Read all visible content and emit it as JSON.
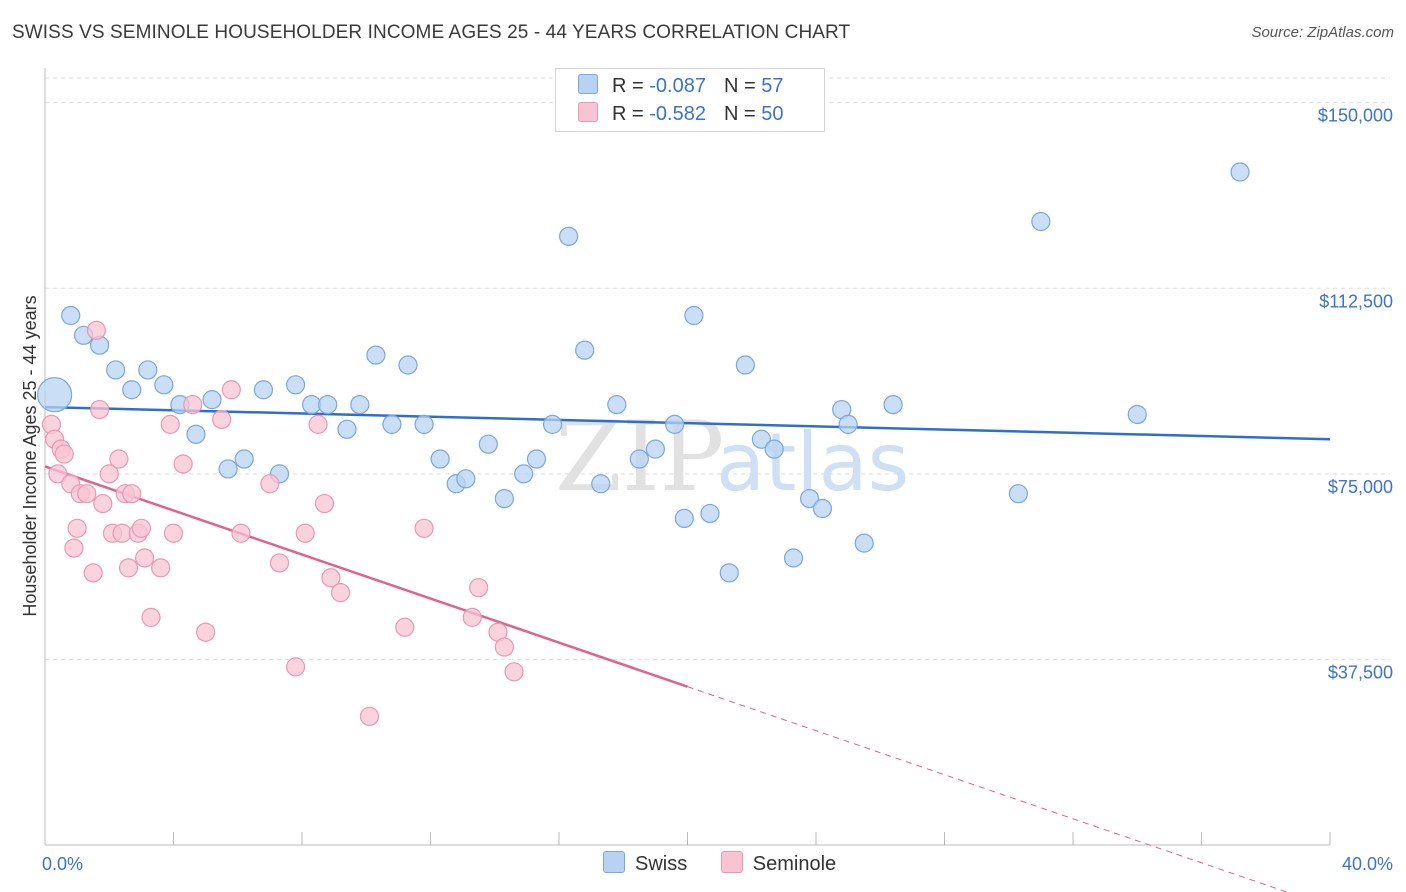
{
  "title": "SWISS VS SEMINOLE HOUSEHOLDER INCOME AGES 25 - 44 YEARS CORRELATION CHART",
  "source": "Source: ZipAtlas.com",
  "watermark": {
    "zip": "ZIP",
    "atlas": "atlas"
  },
  "legend": {
    "r_label": "R = ",
    "n_label": "N = ",
    "swiss": {
      "r": "-0.087",
      "n": "57"
    },
    "seminole": {
      "r": "-0.582",
      "n": "50"
    }
  },
  "bottom_legend": {
    "swiss": "Swiss",
    "seminole": "Seminole"
  },
  "colors": {
    "swiss_fill": "#b8d3f2",
    "swiss_stroke": "#7aa7e0",
    "swiss_line": "#2f6fcb",
    "seminole_fill": "#f8c4d4",
    "seminole_stroke": "#ec97b3",
    "seminole_line": "#e0628e",
    "axis_text": "#3b74c9",
    "grid": "#dddddd"
  },
  "chart_data": {
    "type": "scatter",
    "title": "SWISS VS SEMINOLE HOUSEHOLDER INCOME AGES 25 - 44 YEARS CORRELATION CHART",
    "xlabel": "",
    "ylabel": "Householder Income Ages 25 - 44 years",
    "xlim": [
      0,
      40
    ],
    "ylim": [
      0,
      155000
    ],
    "x_tick_labels": [
      "0.0%",
      "40.0%"
    ],
    "y_ticks": [
      37500,
      75000,
      112500,
      150000
    ],
    "y_tick_labels": [
      "$37,500",
      "$75,000",
      "$112,500",
      "$150,000"
    ],
    "series": [
      {
        "name": "Swiss",
        "points": [
          [
            0.3,
            91000
          ],
          [
            0.8,
            107000
          ],
          [
            1.2,
            103000
          ],
          [
            1.7,
            101000
          ],
          [
            2.2,
            96000
          ],
          [
            2.7,
            92000
          ],
          [
            3.2,
            96000
          ],
          [
            3.7,
            93000
          ],
          [
            4.2,
            89000
          ],
          [
            4.7,
            83000
          ],
          [
            5.2,
            90000
          ],
          [
            5.7,
            76000
          ],
          [
            6.2,
            78000
          ],
          [
            6.8,
            92000
          ],
          [
            7.3,
            75000
          ],
          [
            7.8,
            93000
          ],
          [
            8.3,
            89000
          ],
          [
            8.8,
            89000
          ],
          [
            9.4,
            84000
          ],
          [
            9.8,
            89000
          ],
          [
            10.3,
            99000
          ],
          [
            10.8,
            85000
          ],
          [
            11.3,
            97000
          ],
          [
            11.8,
            85000
          ],
          [
            12.3,
            78000
          ],
          [
            12.8,
            73000
          ],
          [
            13.1,
            74000
          ],
          [
            13.8,
            81000
          ],
          [
            14.3,
            70000
          ],
          [
            14.9,
            75000
          ],
          [
            15.3,
            78000
          ],
          [
            15.8,
            85000
          ],
          [
            16.3,
            123000
          ],
          [
            16.8,
            100000
          ],
          [
            17.3,
            73000
          ],
          [
            17.8,
            89000
          ],
          [
            18.5,
            78000
          ],
          [
            19.0,
            80000
          ],
          [
            19.6,
            85000
          ],
          [
            19.9,
            66000
          ],
          [
            20.2,
            107000
          ],
          [
            20.7,
            67000
          ],
          [
            21.3,
            55000
          ],
          [
            21.8,
            97000
          ],
          [
            22.3,
            82000
          ],
          [
            22.7,
            80000
          ],
          [
            23.3,
            58000
          ],
          [
            23.8,
            70000
          ],
          [
            24.2,
            68000
          ],
          [
            24.8,
            88000
          ],
          [
            25.0,
            85000
          ],
          [
            25.5,
            61000
          ],
          [
            26.4,
            89000
          ],
          [
            30.3,
            71000
          ],
          [
            31.0,
            126000
          ],
          [
            34.0,
            87000
          ],
          [
            37.2,
            136000
          ]
        ]
      },
      {
        "name": "Seminole",
        "points": [
          [
            0.2,
            85000
          ],
          [
            0.3,
            82000
          ],
          [
            0.4,
            75000
          ],
          [
            0.5,
            80000
          ],
          [
            0.6,
            79000
          ],
          [
            0.8,
            73000
          ],
          [
            0.9,
            60000
          ],
          [
            1.0,
            64000
          ],
          [
            1.1,
            71000
          ],
          [
            1.3,
            71000
          ],
          [
            1.5,
            55000
          ],
          [
            1.6,
            104000
          ],
          [
            1.7,
            88000
          ],
          [
            1.8,
            69000
          ],
          [
            2.0,
            75000
          ],
          [
            2.1,
            63000
          ],
          [
            2.3,
            78000
          ],
          [
            2.4,
            63000
          ],
          [
            2.5,
            71000
          ],
          [
            2.6,
            56000
          ],
          [
            2.7,
            71000
          ],
          [
            2.9,
            63000
          ],
          [
            3.0,
            64000
          ],
          [
            3.1,
            58000
          ],
          [
            3.3,
            46000
          ],
          [
            3.6,
            56000
          ],
          [
            3.9,
            85000
          ],
          [
            4.0,
            63000
          ],
          [
            4.3,
            77000
          ],
          [
            4.6,
            89000
          ],
          [
            5.0,
            43000
          ],
          [
            5.5,
            86000
          ],
          [
            5.8,
            92000
          ],
          [
            6.1,
            63000
          ],
          [
            7.0,
            73000
          ],
          [
            7.3,
            57000
          ],
          [
            7.8,
            36000
          ],
          [
            8.1,
            63000
          ],
          [
            8.5,
            85000
          ],
          [
            8.7,
            69000
          ],
          [
            8.9,
            54000
          ],
          [
            9.2,
            51000
          ],
          [
            10.1,
            26000
          ],
          [
            11.2,
            44000
          ],
          [
            11.8,
            64000
          ],
          [
            13.3,
            46000
          ],
          [
            13.5,
            52000
          ],
          [
            14.1,
            43000
          ],
          [
            14.3,
            40000
          ],
          [
            14.6,
            35000
          ]
        ]
      }
    ],
    "trendlines": [
      {
        "series": "Swiss",
        "from": [
          0,
          88500
        ],
        "to": [
          40,
          82000
        ],
        "style": "solid"
      },
      {
        "series": "Seminole",
        "from": [
          0,
          76500
        ],
        "to": [
          20,
          32000
        ],
        "style": "solid"
      },
      {
        "series": "Seminole",
        "from": [
          20,
          32000
        ],
        "to": [
          40,
          -12500
        ],
        "style": "dashed"
      }
    ]
  }
}
